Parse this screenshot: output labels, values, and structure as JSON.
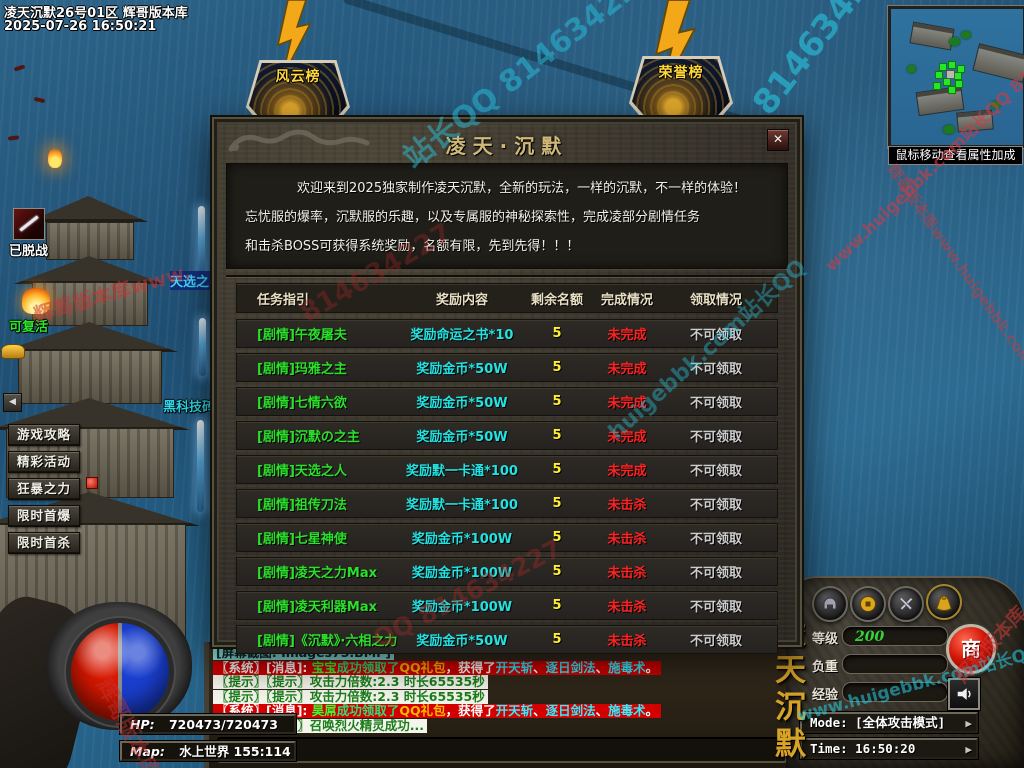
{
  "hud": {
    "server_title": "凌天沉默26号01区 辉哥版本库",
    "datetime": "2025-07-26 16:50:21",
    "banner_left": "风云榜",
    "banner_right": "荣誉榜",
    "minimap_hint": "鼠标移动查看属性加成",
    "buff_combat": "已脱战",
    "buff_revive": "可复活",
    "npc_name": "天选之",
    "player_name": "黑科技砖",
    "menu_buttons": [
      "游戏攻略",
      "精彩活动",
      "狂暴之力",
      "限时首爆",
      "限时首杀"
    ],
    "scroll_left_arrow": "◀",
    "hp_label": "HP:",
    "hp_value": "720473/720473",
    "map_label": "Map:",
    "map_value": "水上世界 155:114"
  },
  "dialog": {
    "title": "凌天·沉默",
    "close_label": "✕",
    "intro_lines": [
      "欢迎来到2025独家制作凌天沉默，全新的玩法，一样的沉默，不一样的体验！",
      "忘忧服的爆率，沉默服的乐趣，以及专属服的神秘探索性，完成凌部分剧情任务",
      "和击杀BOSS可获得系统奖励，名额有限，先到先得！！！"
    ],
    "table": {
      "headers": [
        "任务指引",
        "奖励内容",
        "剩余名额",
        "完成情况",
        "领取情况"
      ],
      "colors": {
        "task": "#2be02b",
        "reward": "#22e2e2",
        "slots": "#ffee33",
        "status": "#ff2222",
        "claim": "#cdcdcd"
      },
      "rows": [
        {
          "task": "[剧情]午夜屠夫",
          "reward": "奖励命运之书*10",
          "slots": "5",
          "status": "未完成",
          "claim": "不可领取"
        },
        {
          "task": "[剧情]玛雅之主",
          "reward": "奖励金币*50W",
          "slots": "5",
          "status": "未完成",
          "claim": "不可领取"
        },
        {
          "task": "[剧情]七情六欲",
          "reward": "奖励金币*50W",
          "slots": "5",
          "status": "未完成",
          "claim": "不可领取"
        },
        {
          "task": "[剧情]沉默の之主",
          "reward": "奖励金币*50W",
          "slots": "5",
          "status": "未完成",
          "claim": "不可领取"
        },
        {
          "task": "[剧情]天选之人",
          "reward": "奖励默一卡通*100",
          "slots": "5",
          "status": "未完成",
          "claim": "不可领取"
        },
        {
          "task": "[剧情]祖传刀法",
          "reward": "奖励默一卡通*100",
          "slots": "5",
          "status": "未击杀",
          "claim": "不可领取"
        },
        {
          "task": "[剧情]七星神使",
          "reward": "奖励金币*100W",
          "slots": "5",
          "status": "未击杀",
          "claim": "不可领取"
        },
        {
          "task": "[剧情]凌天之力Max",
          "reward": "奖励金币*100W",
          "slots": "5",
          "status": "未击杀",
          "claim": "不可领取"
        },
        {
          "task": "[剧情]凌天利器Max",
          "reward": "奖励金币*100W",
          "slots": "5",
          "status": "未击杀",
          "claim": "不可领取"
        },
        {
          "task": "[剧情]《沉默》·六相之力",
          "reward": "奖励金币*50W",
          "slots": "5",
          "status": "未击杀",
          "claim": "不可领取"
        }
      ]
    }
  },
  "chat": {
    "lines": [
      {
        "bg": "#93ece4",
        "segments": [
          {
            "t": "[屏幕截图: Images75.BMP]",
            "c": "#0b2a2a"
          }
        ]
      },
      {
        "bg": "#d40000",
        "segments": [
          {
            "t": "〖系统〗[消息]: ",
            "c": "#ffffff"
          },
          {
            "t": "宝宝",
            "c": "#33ff33"
          },
          {
            "t": "成功领取了",
            "c": "#33dd77"
          },
          {
            "t": "QQ礼包",
            "c": "#ffbb00"
          },
          {
            "t": "，获得了",
            "c": "#ffffff"
          },
          {
            "t": "开天斩",
            "c": "#33eeff"
          },
          {
            "t": "、",
            "c": "#ffffff"
          },
          {
            "t": "逐日剑法",
            "c": "#33eeff"
          },
          {
            "t": "、",
            "c": "#ffffff"
          },
          {
            "t": "施毒术",
            "c": "#33eeff"
          },
          {
            "t": "。",
            "c": "#ffffff"
          }
        ]
      },
      {
        "bg": "#f4f4ec",
        "segments": [
          {
            "t": "〖提示〗〖提示〗攻击力倍数:2.3 时长65535秒",
            "c": "#1b7e1b"
          }
        ]
      },
      {
        "bg": "#f4f4ec",
        "segments": [
          {
            "t": "〖提示〗〖提示〗攻击力倍数:2.3 时长65535秒",
            "c": "#1b7e1b"
          }
        ]
      },
      {
        "bg": "#d40000",
        "segments": [
          {
            "t": "〖系统〗[消息]: ",
            "c": "#ffffff"
          },
          {
            "t": "昊屌",
            "c": "#33ff33"
          },
          {
            "t": "成功领取了",
            "c": "#33dd77"
          },
          {
            "t": "QQ礼包",
            "c": "#ffbb00"
          },
          {
            "t": "，获得了",
            "c": "#ffffff"
          },
          {
            "t": "开天斩",
            "c": "#33eeff"
          },
          {
            "t": "、",
            "c": "#ffffff"
          },
          {
            "t": "逐日剑法",
            "c": "#33eeff"
          },
          {
            "t": "、",
            "c": "#ffffff"
          },
          {
            "t": "施毒术",
            "c": "#33eeff"
          },
          {
            "t": "。",
            "c": "#ffffff"
          }
        ]
      },
      {
        "bg": "#f4f4ec",
        "segments": [
          {
            "t": "〖提示〗〖提示〗召唤烈火精灵成功...",
            "c": "#1b7e1b"
          }
        ]
      }
    ]
  },
  "panel": {
    "level_label": "等级",
    "level_value": "200",
    "weight_label": "负重",
    "weight_value": "",
    "exp_label": "经验",
    "exp_value": "",
    "shop_button": "商",
    "mode_text": "Mode: [全体攻击模式]",
    "time_text": "Time: 16:50:20",
    "arrow": "▶",
    "vertical_title": "凌天沉默",
    "accent_gold": "#d8a428"
  },
  "watermarks": [
    {
      "text": "814634227",
      "cls": "wm-a"
    },
    {
      "text": "站长QQ 814634227",
      "cls": "wm-b"
    },
    {
      "text": "www.huigebbk.com站长QQ 8146342",
      "cls": "wm-c"
    },
    {
      "text": "辉哥版本库www.",
      "cls": "wm-d"
    },
    {
      "text": "814634227",
      "cls": "wm-e"
    },
    {
      "text": "QQ 814634227",
      "cls": "wm-f"
    },
    {
      "text": "huigebbk.com站长QQ",
      "cls": "wm-g"
    },
    {
      "text": "www.huigebbk.com站长QQ",
      "cls": "wm-h"
    },
    {
      "text": "辉哥版本库",
      "cls": "wm-i"
    },
    {
      "text": "辉哥版本库www.huigebbk.com站长QQ",
      "cls": "wm-j"
    },
    {
      "text": "辉哥版本库",
      "cls": "wm-k"
    }
  ]
}
